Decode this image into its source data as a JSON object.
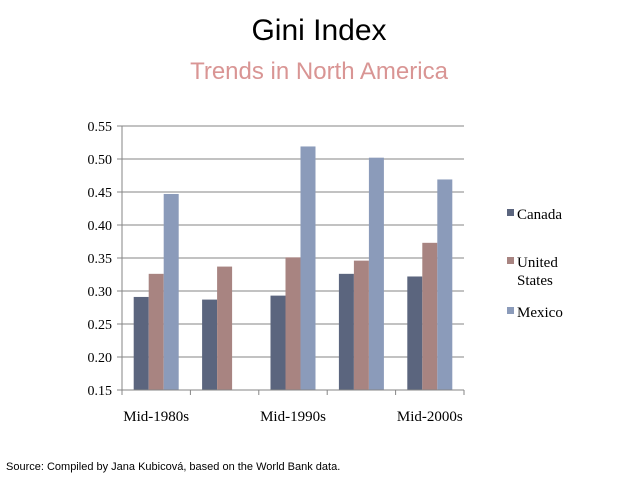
{
  "slide": {
    "title": "Gini Index",
    "subtitle": "Trends in North America",
    "source": "Source: Compiled by Jana Kubicová, based on the World Bank data."
  },
  "colors": {
    "subtitle": "#d99594",
    "canada": "#5b657e",
    "united_states": "#a88481",
    "mexico": "#8b9bba",
    "axis": "#868686"
  },
  "chart_data": {
    "type": "bar",
    "title": "",
    "xlabel": "",
    "ylabel": "",
    "ylim": [
      0.15,
      0.55
    ],
    "yticks": [
      "0.55",
      "0.50",
      "0.45",
      "0.40",
      "0.35",
      "0.30",
      "0.25",
      "0.20",
      "0.15"
    ],
    "grid": true,
    "legend_position": "right",
    "categories": [
      "Mid-1980s",
      "",
      "Mid-1990s",
      "",
      "Mid-2000s"
    ],
    "series": [
      {
        "name": "Canada",
        "values": [
          0.291,
          0.287,
          0.293,
          0.326,
          0.322
        ]
      },
      {
        "name": "United States",
        "values": [
          0.326,
          0.337,
          0.351,
          0.346,
          0.373
        ]
      },
      {
        "name": "Mexico",
        "values": [
          0.447,
          null,
          0.519,
          0.502,
          0.469
        ]
      }
    ]
  }
}
